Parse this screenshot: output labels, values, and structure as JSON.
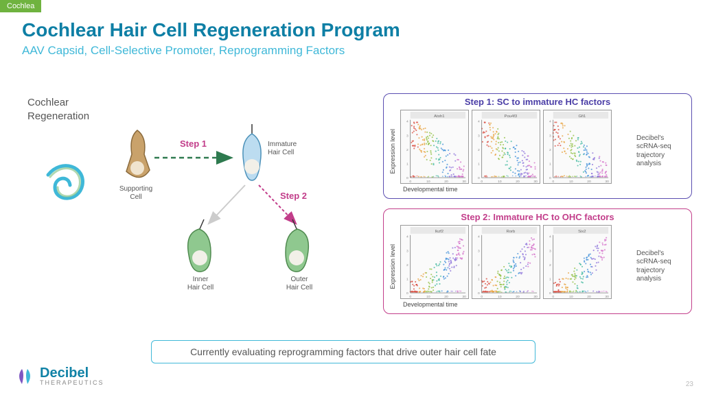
{
  "tag": "Cochlea",
  "title": {
    "text": "Cochlear Hair Cell Regeneration Program",
    "color": "#0e7fa5"
  },
  "subtitle": {
    "text": "AAV Capsid, Cell-Selective Promoter, Reprogramming Factors",
    "color": "#3fb8d8"
  },
  "section_label": "Cochlear\nRegeneration",
  "diagram": {
    "cells": {
      "supporting": {
        "label": "Supporting\nCell",
        "fill": "#c9a26b",
        "stroke": "#8a6a3c"
      },
      "immature": {
        "label": "Immature\nHair Cell",
        "fill": "#bcdcf0",
        "stroke": "#4a90b8"
      },
      "inner": {
        "label": "Inner\nHair Cell",
        "fill": "#8fc88f",
        "stroke": "#4f8a4f"
      },
      "outer": {
        "label": "Outer\nHair Cell",
        "fill": "#8fc88f",
        "stroke": "#4f8a4f"
      }
    },
    "steps": {
      "s1": {
        "label": "Step 1",
        "color": "#2e7a4f",
        "dash": "7,5"
      },
      "s2": {
        "label": "Step 2",
        "color": "#c23d8a",
        "dash": "4,3"
      }
    },
    "label_color": "#c23d8a"
  },
  "panel1": {
    "title": "Step 1: SC to immature HC factors",
    "title_color": "#4a3da6",
    "border_color": "#5a4db0",
    "series_labels": [
      "Atoh1",
      "Pou4f3",
      "Gfi1"
    ],
    "trend": "down"
  },
  "panel2": {
    "title": "Step 2: Immature HC to OHC factors",
    "title_color": "#c23d8a",
    "border_color": "#c23d8a",
    "series_labels": [
      "Ikzf2",
      "Rorb",
      "Six2"
    ],
    "trend": "up"
  },
  "axis": {
    "x": "Developmental time",
    "y": "Expression level",
    "xmax": 30,
    "ymax": 4
  },
  "scatter_colors": [
    "#d9483b",
    "#e8a23c",
    "#8fbf3f",
    "#3fb89f",
    "#3f8fd9",
    "#8a6fd9",
    "#d46fc9"
  ],
  "side_note": "Decibel's scRNA-seq trajectory analysis",
  "chart_size": {
    "w": 100,
    "h": 108
  },
  "footer": "Currently evaluating reprogramming factors that drive outer hair cell fate",
  "logo": {
    "main": "Decibel",
    "sub": "THERAPEUTICS",
    "icon_colors": [
      "#7e57c2",
      "#3fb8d8"
    ]
  },
  "page_number": "23"
}
